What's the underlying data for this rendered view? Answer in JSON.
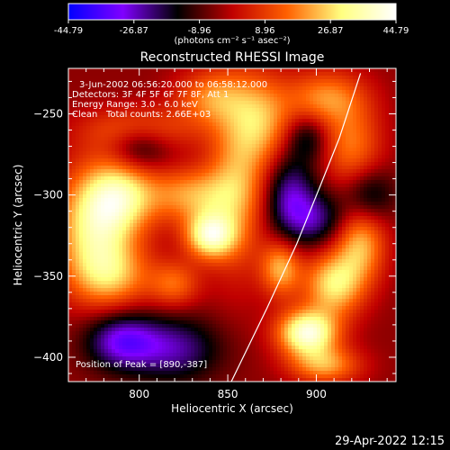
{
  "chart_data": {
    "type": "heatmap",
    "title": "Reconstructed RHESSI Image",
    "xlabel": "Heliocentric X (arcsec)",
    "ylabel": "Heliocentric Y (arcsec)",
    "xlim": [
      760,
      945
    ],
    "ylim": [
      -415,
      -222
    ],
    "x_ticks": [
      800,
      850,
      900
    ],
    "y_ticks": [
      -250,
      -300,
      -350,
      -400
    ],
    "colorbar": {
      "min": -44.79,
      "max": 44.79,
      "tick_labels": [
        "-44.79",
        "-26.87",
        "-8.96",
        "8.96",
        "26.87",
        "44.79"
      ],
      "unit_label": "(photons cm⁻² s⁻¹ asec⁻²)",
      "palette": [
        "#0000ff",
        "#8000ff",
        "#000000",
        "#c00000",
        "#ff6000",
        "#ffff80",
        "#ffffff"
      ]
    },
    "annotations": [
      "3-Jun-2002 06:56:20.000 to 06:58:12.000",
      "Detectors: 3F 4F 5F 6F 7F 8F, Att 1",
      "Energy Range: 3.0 - 6.0 keV",
      "Clean",
      "Total counts: 2.66E+03"
    ],
    "peak_label": "Position of Peak = [890,-387]",
    "peak": [
      890,
      -387
    ],
    "limb_curve": [
      [
        852,
        -415
      ],
      [
        872,
        -370
      ],
      [
        889,
        -330
      ],
      [
        902,
        -295
      ],
      [
        913,
        -265
      ],
      [
        925,
        -225
      ]
    ],
    "emission_sources": [
      {
        "x": 775,
        "y": -320,
        "amp": 34,
        "sx": 16,
        "sy": 26
      },
      {
        "x": 790,
        "y": -300,
        "amp": 26,
        "sx": 14,
        "sy": 16
      },
      {
        "x": 785,
        "y": -350,
        "amp": 20,
        "sx": 16,
        "sy": 14
      },
      {
        "x": 840,
        "y": -325,
        "amp": 38,
        "sx": 10,
        "sy": 10
      },
      {
        "x": 830,
        "y": -300,
        "amp": 24,
        "sx": 18,
        "sy": 12
      },
      {
        "x": 800,
        "y": -260,
        "amp": 18,
        "sx": 22,
        "sy": 10
      },
      {
        "x": 855,
        "y": -290,
        "amp": 22,
        "sx": 12,
        "sy": 40
      },
      {
        "x": 870,
        "y": -255,
        "amp": 22,
        "sx": 12,
        "sy": 20
      },
      {
        "x": 840,
        "y": -240,
        "amp": 20,
        "sx": 14,
        "sy": 12
      },
      {
        "x": 905,
        "y": -240,
        "amp": 22,
        "sx": 16,
        "sy": 12
      },
      {
        "x": 920,
        "y": -270,
        "amp": 20,
        "sx": 12,
        "sy": 18
      },
      {
        "x": 895,
        "y": -385,
        "amp": 44,
        "sx": 12,
        "sy": 10
      },
      {
        "x": 910,
        "y": -355,
        "amp": 32,
        "sx": 12,
        "sy": 14
      },
      {
        "x": 880,
        "y": -345,
        "amp": 26,
        "sx": 8,
        "sy": 12
      },
      {
        "x": 925,
        "y": -330,
        "amp": 26,
        "sx": 10,
        "sy": 16
      },
      {
        "x": 905,
        "y": -405,
        "amp": 24,
        "sx": 14,
        "sy": 8
      },
      {
        "x": 820,
        "y": -355,
        "amp": 18,
        "sx": 10,
        "sy": 10
      },
      {
        "x": 820,
        "y": -395,
        "amp": -20,
        "sx": 18,
        "sy": 14
      },
      {
        "x": 790,
        "y": -390,
        "amp": -26,
        "sx": 14,
        "sy": 12
      },
      {
        "x": 800,
        "y": -270,
        "amp": -18,
        "sx": 12,
        "sy": 10
      },
      {
        "x": 885,
        "y": -300,
        "amp": -22,
        "sx": 10,
        "sy": 18
      },
      {
        "x": 900,
        "y": -315,
        "amp": -18,
        "sx": 12,
        "sy": 12
      },
      {
        "x": 930,
        "y": -300,
        "amp": -16,
        "sx": 10,
        "sy": 12
      },
      {
        "x": 895,
        "y": -265,
        "amp": -14,
        "sx": 8,
        "sy": 10
      }
    ]
  },
  "footer": {
    "timestamp": "29-Apr-2022 12:15"
  }
}
